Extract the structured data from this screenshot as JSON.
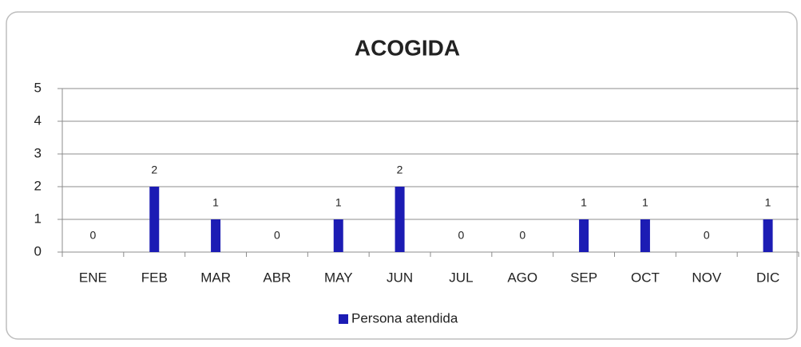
{
  "chart_data": {
    "type": "bar",
    "title": "ACOGIDA",
    "categories": [
      "ENE",
      "FEB",
      "MAR",
      "ABR",
      "MAY",
      "JUN",
      "JUL",
      "AGO",
      "SEP",
      "OCT",
      "NOV",
      "DIC"
    ],
    "series": [
      {
        "name": "Persona atendida",
        "color": "#1c1cb4",
        "values": [
          0,
          2,
          1,
          0,
          1,
          2,
          0,
          0,
          1,
          1,
          0,
          1
        ]
      }
    ],
    "ylim": [
      0,
      5
    ],
    "yticks": [
      0,
      1,
      2,
      3,
      4,
      5
    ],
    "grid": true,
    "legend": "bottom"
  }
}
